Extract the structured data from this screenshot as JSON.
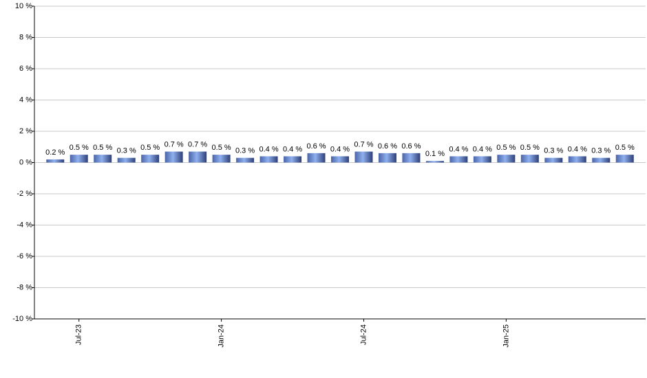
{
  "chart_data": {
    "type": "bar",
    "categories": [
      null,
      "Jul-23",
      null,
      null,
      null,
      null,
      null,
      "Jan-24",
      null,
      null,
      null,
      null,
      null,
      "Jul-24",
      null,
      null,
      null,
      null,
      null,
      "Jan-25",
      null,
      null,
      null,
      null,
      null
    ],
    "values": [
      0.2,
      0.5,
      0.5,
      0.3,
      0.5,
      0.7,
      0.7,
      0.5,
      0.3,
      0.4,
      0.4,
      0.6,
      0.4,
      0.7,
      0.6,
      0.6,
      0.1,
      0.4,
      0.4,
      0.5,
      0.5,
      0.3,
      0.4,
      0.3,
      0.5
    ],
    "value_labels": [
      "0.2 %",
      "0.5 %",
      "0.5 %",
      "0.3 %",
      "0.5 %",
      "0.7 %",
      "0.7 %",
      "0.5 %",
      "0.3 %",
      "0.4 %",
      "0.4 %",
      "0.6 %",
      "0.4 %",
      "0.7 %",
      "0.6 %",
      "0.6 %",
      "0.1 %",
      "0.4 %",
      "0.4 %",
      "0.5 %",
      "0.5 %",
      "0.3 %",
      "0.4 %",
      "0.3 %",
      "0.5 %"
    ],
    "color": "#8fb0ee",
    "ylim": [
      -10,
      10
    ],
    "yticks": [
      {
        "value": -10,
        "label": "-10 %"
      },
      {
        "value": -8,
        "label": "-8 %"
      },
      {
        "value": -6,
        "label": "-6 %"
      },
      {
        "value": -4,
        "label": "-4 %"
      },
      {
        "value": -2,
        "label": "-2 %"
      },
      {
        "value": 0,
        "label": "0 %"
      },
      {
        "value": 2,
        "label": "2 %"
      },
      {
        "value": 4,
        "label": "4 %"
      },
      {
        "value": 6,
        "label": "6 %"
      },
      {
        "value": 8,
        "label": "8 %"
      },
      {
        "value": 10,
        "label": "10 %"
      }
    ],
    "grid": true
  }
}
